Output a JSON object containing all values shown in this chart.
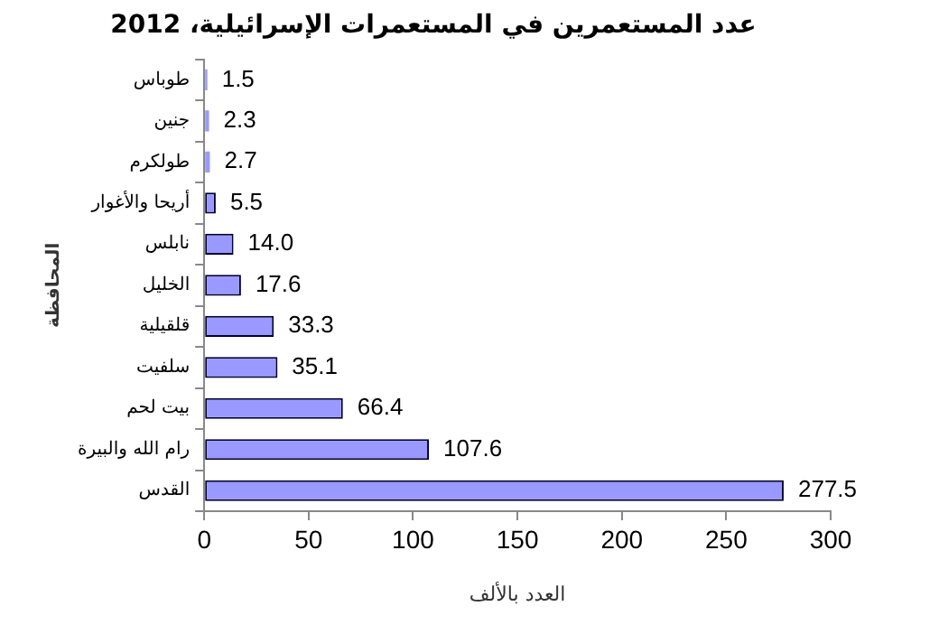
{
  "chart_data": {
    "type": "bar",
    "orientation": "horizontal",
    "title": "عدد المستعمرين في المستعمرات الإسرائيلية، 2012",
    "xlabel": "العدد بالألف",
    "ylabel": "المحافظة",
    "categories": [
      "طوباس",
      "جنين",
      "طولكرم",
      "أريحا والأغوار",
      "نابلس",
      "الخليل",
      "قلقيلية",
      "سلفيت",
      "بيت لحم",
      "رام الله والبيرة",
      "القدس"
    ],
    "values": [
      1.5,
      2.3,
      2.7,
      5.5,
      14.0,
      17.6,
      33.3,
      35.1,
      66.4,
      107.6,
      277.5
    ],
    "value_labels": [
      "1.5",
      "2.3",
      "2.7",
      "5.5",
      "14.0",
      "17.6",
      "33.3",
      "35.1",
      "66.4",
      "107.6",
      "277.5"
    ],
    "color": "#9999ff",
    "xlim": [
      0,
      300
    ],
    "xticks": [
      0,
      50,
      100,
      150,
      200,
      250,
      300
    ],
    "grid": false,
    "legend": false
  }
}
